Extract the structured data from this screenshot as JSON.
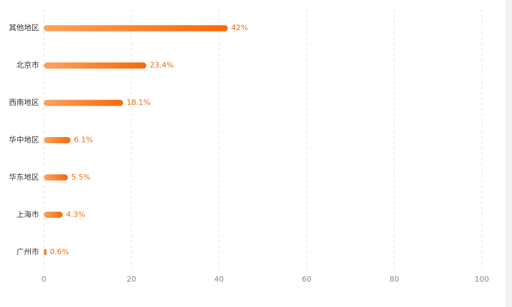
{
  "chart_data": {
    "type": "bar",
    "orientation": "horizontal",
    "categories": [
      "其他地区",
      "北京市",
      "西南地区",
      "华中地区",
      "华东地区",
      "上海市",
      "广州市"
    ],
    "values": [
      42,
      23.4,
      18.1,
      6.1,
      5.5,
      4.3,
      0.6
    ],
    "value_labels": [
      "42%",
      "23.4%",
      "18.1%",
      "6.1%",
      "5.5%",
      "4.3%",
      "0.6%"
    ],
    "gradient": [
      "#fba35e",
      "#f5690a"
    ],
    "label_color": "#f26b0e",
    "xlim": [
      0,
      100
    ],
    "xticks": [
      0,
      20,
      40,
      60,
      80,
      100
    ],
    "grid": true
  }
}
